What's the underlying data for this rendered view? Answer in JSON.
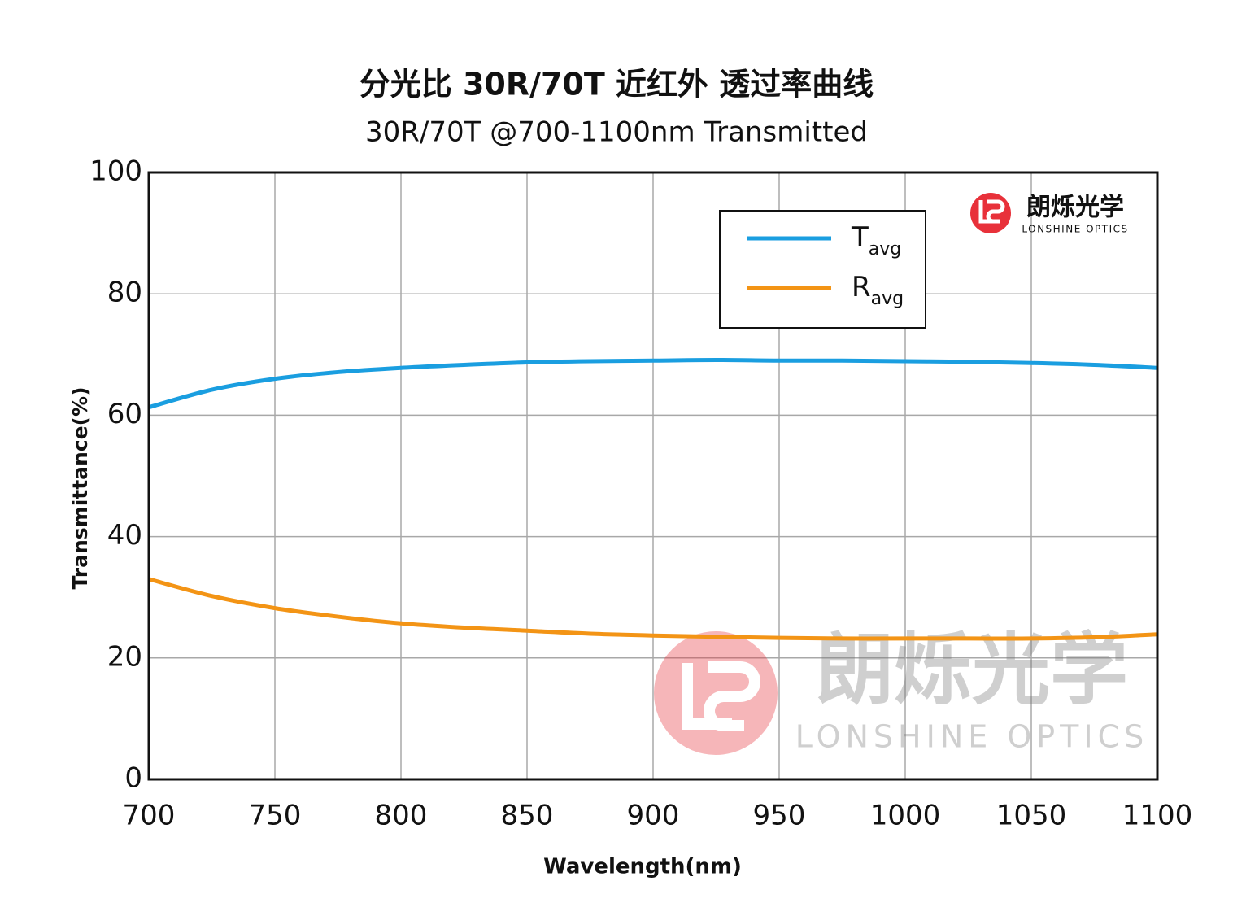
{
  "chart_data": {
    "type": "line",
    "title": "分光比 30R/70T 近红外 透过率曲线",
    "subtitle": "30R/70T @700-1100nm  Transmitted",
    "x_label": "Wavelength(nm)",
    "y_label": "Transmittance(%)",
    "x": [
      700,
      725,
      750,
      775,
      800,
      825,
      850,
      875,
      900,
      925,
      950,
      975,
      1000,
      1025,
      1050,
      1075,
      1100
    ],
    "series": [
      {
        "name": "T",
        "name_subscript": "avg",
        "color": "#1a9ee0",
        "values": [
          61.3,
          64.2,
          66.0,
          67.1,
          67.8,
          68.3,
          68.7,
          68.9,
          69.0,
          69.1,
          69.0,
          69.0,
          68.9,
          68.8,
          68.6,
          68.3,
          67.8
        ]
      },
      {
        "name": "R",
        "name_subscript": "avg",
        "color": "#f39415",
        "values": [
          33.0,
          30.2,
          28.2,
          26.8,
          25.7,
          25.0,
          24.5,
          24.0,
          23.7,
          23.5,
          23.3,
          23.2,
          23.2,
          23.2,
          23.2,
          23.4,
          23.9
        ]
      }
    ],
    "xlim": [
      700,
      1100
    ],
    "xticks": [
      700,
      750,
      800,
      850,
      900,
      950,
      1000,
      1050,
      1100
    ],
    "ylim": [
      0,
      100
    ],
    "yticks": [
      0,
      20,
      40,
      60,
      80,
      100
    ],
    "grid": true,
    "legend": "upper-right"
  },
  "logo": {
    "name": "朗烁光学",
    "tagline": "LONSHINE OPTICS"
  }
}
